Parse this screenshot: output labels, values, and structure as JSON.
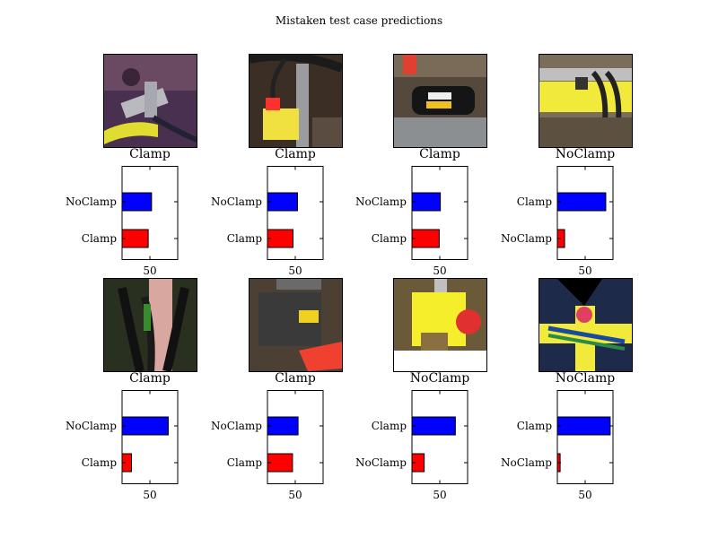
{
  "page_title": "Mistaken test case predictions",
  "colors": {
    "series_a": "#0000ff",
    "series_b": "#ff0000"
  },
  "cells": [
    {
      "true_label": "Clamp",
      "photo": "purple soil clamp scene"
    },
    {
      "true_label": "Clamp",
      "photo": "yellow clamp with hose"
    },
    {
      "true_label": "Clamp",
      "photo": "black pipe with tag"
    },
    {
      "true_label": "NoClamp",
      "photo": "yellow pipe with hoses"
    },
    {
      "true_label": "Clamp",
      "photo": "hydraulic hoses"
    },
    {
      "true_label": "Clamp",
      "photo": "black pipe with red cap"
    },
    {
      "true_label": "NoClamp",
      "photo": "yellow cylinder machine"
    },
    {
      "true_label": "NoClamp",
      "photo": "yellow tee with blue hoses"
    }
  ],
  "chart_data": [
    {
      "type": "bar",
      "orientation": "horizontal",
      "categories": [
        "Clamp",
        "NoClamp"
      ],
      "values": [
        47,
        53
      ],
      "xticks": [
        50
      ],
      "xlim": [
        0,
        100
      ],
      "bar_colors": [
        "#ff0000",
        "#0000ff"
      ]
    },
    {
      "type": "bar",
      "orientation": "horizontal",
      "categories": [
        "Clamp",
        "NoClamp"
      ],
      "values": [
        46,
        54
      ],
      "xticks": [
        50
      ],
      "xlim": [
        0,
        100
      ],
      "bar_colors": [
        "#ff0000",
        "#0000ff"
      ]
    },
    {
      "type": "bar",
      "orientation": "horizontal",
      "categories": [
        "Clamp",
        "NoClamp"
      ],
      "values": [
        49,
        51
      ],
      "xticks": [
        50
      ],
      "xlim": [
        0,
        100
      ],
      "bar_colors": [
        "#ff0000",
        "#0000ff"
      ]
    },
    {
      "type": "bar",
      "orientation": "horizontal",
      "categories": [
        "NoClamp",
        "Clamp"
      ],
      "values": [
        13,
        87
      ],
      "xticks": [
        50
      ],
      "xlim": [
        0,
        100
      ],
      "bar_colors": [
        "#ff0000",
        "#0000ff"
      ]
    },
    {
      "type": "bar",
      "orientation": "horizontal",
      "categories": [
        "Clamp",
        "NoClamp"
      ],
      "values": [
        17,
        83
      ],
      "xticks": [
        50
      ],
      "xlim": [
        0,
        100
      ],
      "bar_colors": [
        "#ff0000",
        "#0000ff"
      ]
    },
    {
      "type": "bar",
      "orientation": "horizontal",
      "categories": [
        "Clamp",
        "NoClamp"
      ],
      "values": [
        45,
        55
      ],
      "xticks": [
        50
      ],
      "xlim": [
        0,
        100
      ],
      "bar_colors": [
        "#ff0000",
        "#0000ff"
      ]
    },
    {
      "type": "bar",
      "orientation": "horizontal",
      "categories": [
        "NoClamp",
        "Clamp"
      ],
      "values": [
        22,
        78
      ],
      "xticks": [
        50
      ],
      "xlim": [
        0,
        100
      ],
      "bar_colors": [
        "#ff0000",
        "#0000ff"
      ]
    },
    {
      "type": "bar",
      "orientation": "horizontal",
      "categories": [
        "NoClamp",
        "Clamp"
      ],
      "values": [
        5,
        95
      ],
      "xticks": [
        50
      ],
      "xlim": [
        0,
        100
      ],
      "bar_colors": [
        "#ff0000",
        "#0000ff"
      ]
    }
  ]
}
